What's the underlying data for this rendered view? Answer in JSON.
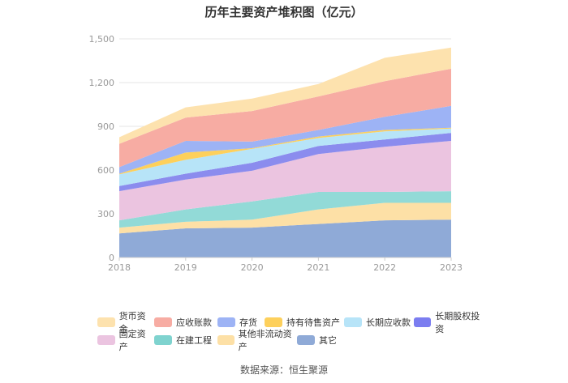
{
  "chart_data": {
    "type": "area",
    "stacked": true,
    "title": "历年主要资产堆积图（亿元）",
    "xlabel": "",
    "ylabel": "",
    "categories": [
      "2018",
      "2019",
      "2020",
      "2021",
      "2022",
      "2023"
    ],
    "y_ticks": [
      "0",
      "300",
      "600",
      "900",
      "1,200",
      "1,500"
    ],
    "ylim": [
      0,
      1500
    ],
    "grid": true,
    "legend_position": "bottom",
    "series": [
      {
        "name": "其它",
        "color": "#8faad7",
        "values": [
          165,
          200,
          205,
          230,
          255,
          260
        ]
      },
      {
        "name": "其他非流动资产",
        "color": "#fde0a6",
        "values": [
          40,
          45,
          55,
          100,
          120,
          115
        ]
      },
      {
        "name": "在建工程",
        "color": "#92dad7",
        "values": [
          50,
          85,
          125,
          120,
          75,
          80
        ]
      },
      {
        "name": "固定资产",
        "color": "#ebc4e0",
        "values": [
          200,
          205,
          210,
          260,
          310,
          345
        ]
      },
      {
        "name": "长期股权投资",
        "color": "#8b8cee",
        "values": [
          35,
          40,
          55,
          55,
          50,
          55
        ]
      },
      {
        "name": "长期应收款",
        "color": "#b7e4f8",
        "values": [
          80,
          95,
          95,
          55,
          55,
          30
        ]
      },
      {
        "name": "持有待售资产",
        "color": "#fdd05c",
        "values": [
          5,
          50,
          5,
          10,
          10,
          5
        ]
      },
      {
        "name": "存货",
        "color": "#9db3f5",
        "values": [
          45,
          80,
          45,
          45,
          90,
          150
        ]
      },
      {
        "name": "应收账款",
        "color": "#f7aca3",
        "values": [
          160,
          160,
          210,
          230,
          245,
          255
        ]
      },
      {
        "name": "货币资金",
        "color": "#fde2ae",
        "values": [
          45,
          70,
          85,
          85,
          160,
          145
        ]
      }
    ]
  },
  "legend": [
    [
      {
        "label": "货币资金",
        "color": "#fde2ae"
      },
      {
        "label": "应收账款",
        "color": "#f7aca3"
      },
      {
        "label": "存货",
        "color": "#9db3f5"
      },
      {
        "label": "持有待售资产",
        "color": "#fdd05c"
      },
      {
        "label": "长期应收款",
        "color": "#b7e4f8"
      },
      {
        "label": "长期股权投资",
        "color": "#7b7df0"
      }
    ],
    [
      {
        "label": "固定资产",
        "color": "#ebc4e0"
      },
      {
        "label": "在建工程",
        "color": "#7fd3cf"
      },
      {
        "label": "其他非流动资产",
        "color": "#fde0a6"
      },
      {
        "label": "其它",
        "color": "#8faad7"
      }
    ]
  ],
  "source": "数据来源：恒生聚源"
}
